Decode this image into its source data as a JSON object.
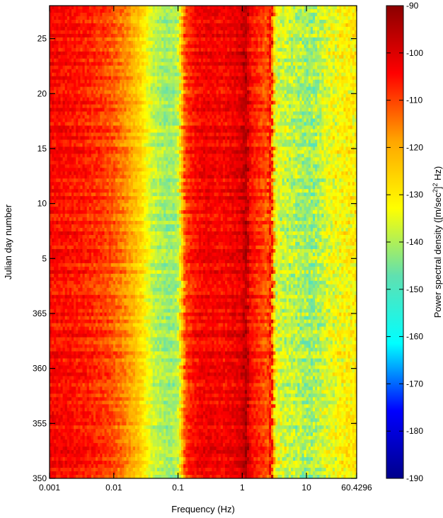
{
  "chart_data": {
    "type": "heatmap",
    "title": "",
    "xlabel": "Frequency (Hz)",
    "ylabel": "Julian day number",
    "x_scale": "log",
    "xlim": [
      0.001,
      60.4296
    ],
    "x_ticks": [
      {
        "value": 0.001,
        "label": "0.001"
      },
      {
        "value": 0.01,
        "label": "0.01"
      },
      {
        "value": 0.1,
        "label": "0.1"
      },
      {
        "value": 1,
        "label": "1"
      },
      {
        "value": 10,
        "label": "10"
      },
      {
        "value": 60.4296,
        "label": "60.4296"
      }
    ],
    "y_ticks": [
      {
        "label": "350",
        "index": 0
      },
      {
        "label": "355",
        "index": 5
      },
      {
        "label": "360",
        "index": 10
      },
      {
        "label": "365",
        "index": 15
      },
      {
        "label": "5",
        "index": 20
      },
      {
        "label": "10",
        "index": 25
      },
      {
        "label": "15",
        "index": 30
      },
      {
        "label": "20",
        "index": 35
      },
      {
        "label": "25",
        "index": 40
      }
    ],
    "y_index_range": [
      0,
      43
    ],
    "colorbar": {
      "label_parts": [
        "Power spectral density ([m/sec",
        "2",
        "]",
        "2",
        " Hz)"
      ],
      "range": [
        -190,
        -90
      ],
      "ticks": [
        "-90",
        "-100",
        "-110",
        "-120",
        "-130",
        "-140",
        "-150",
        "-160",
        "-170",
        "-180",
        "-190"
      ],
      "colors": [
        "#00008b",
        "#0000ff",
        "#00ffff",
        "#60e0b0",
        "#ffff00",
        "#ffa500",
        "#ff0000",
        "#8b0000"
      ]
    },
    "spectrum_profile": {
      "freq": [
        0.001,
        0.002,
        0.004,
        0.008,
        0.015,
        0.025,
        0.04,
        0.07,
        0.1,
        0.13,
        0.2,
        0.3,
        0.5,
        0.8,
        1.0,
        1.15,
        1.3,
        1.8,
        2.5,
        2.8,
        3.3,
        5,
        8,
        12,
        20,
        35,
        60.4296
      ],
      "psd": [
        -104,
        -105,
        -107,
        -110,
        -116,
        -125,
        -138,
        -142,
        -140,
        -110,
        -104,
        -103,
        -104,
        -102,
        -100,
        -94,
        -104,
        -108,
        -112,
        -102,
        -135,
        -138,
        -140,
        -142,
        -136,
        -132,
        -130
      ]
    }
  }
}
